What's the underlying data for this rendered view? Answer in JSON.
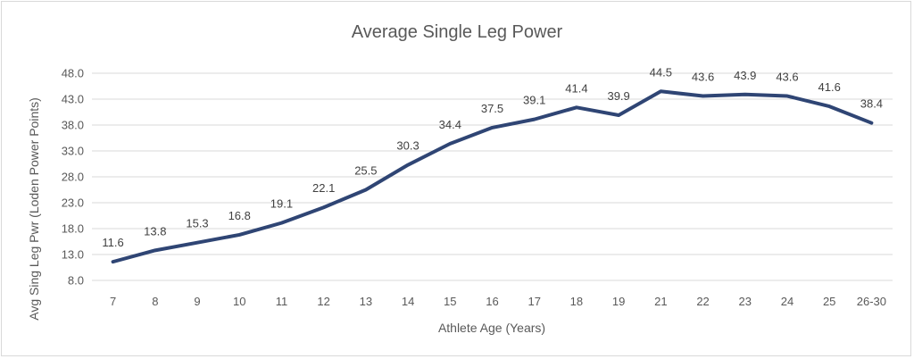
{
  "chart_data": {
    "type": "line",
    "title": "Average Single Leg Power",
    "xlabel": "Athlete Age (Years)",
    "ylabel": "Avg Sing Leg Pwr (Loden Power Points)",
    "categories": [
      "7",
      "8",
      "9",
      "10",
      "11",
      "12",
      "13",
      "14",
      "15",
      "16",
      "17",
      "18",
      "19",
      "21",
      "22",
      "23",
      "24",
      "25",
      "26-30"
    ],
    "series": [
      {
        "values": [
          11.6,
          13.8,
          15.3,
          16.8,
          19.1,
          22.1,
          25.5,
          30.3,
          34.4,
          37.5,
          39.1,
          41.4,
          39.9,
          44.5,
          43.6,
          43.9,
          43.6,
          41.6,
          38.4
        ]
      }
    ],
    "data_labels": [
      "11.6",
      "13.8",
      "15.3",
      "16.8",
      "19.1",
      "22.1",
      "25.5",
      "30.3",
      "34.4",
      "37.5",
      "39.1",
      "41.4",
      "39.9",
      "44.5",
      "43.6",
      "43.9",
      "43.6",
      "41.6",
      "38.4"
    ],
    "yticks": [
      "8.0",
      "13.0",
      "18.0",
      "23.0",
      "28.0",
      "33.0",
      "38.0",
      "43.0",
      "48.0"
    ],
    "ylim": [
      8,
      48
    ],
    "grid": true,
    "legend": "none",
    "colors": {
      "series": "#2f4574",
      "grid": "#d9d9d9",
      "text": "#595959"
    }
  }
}
